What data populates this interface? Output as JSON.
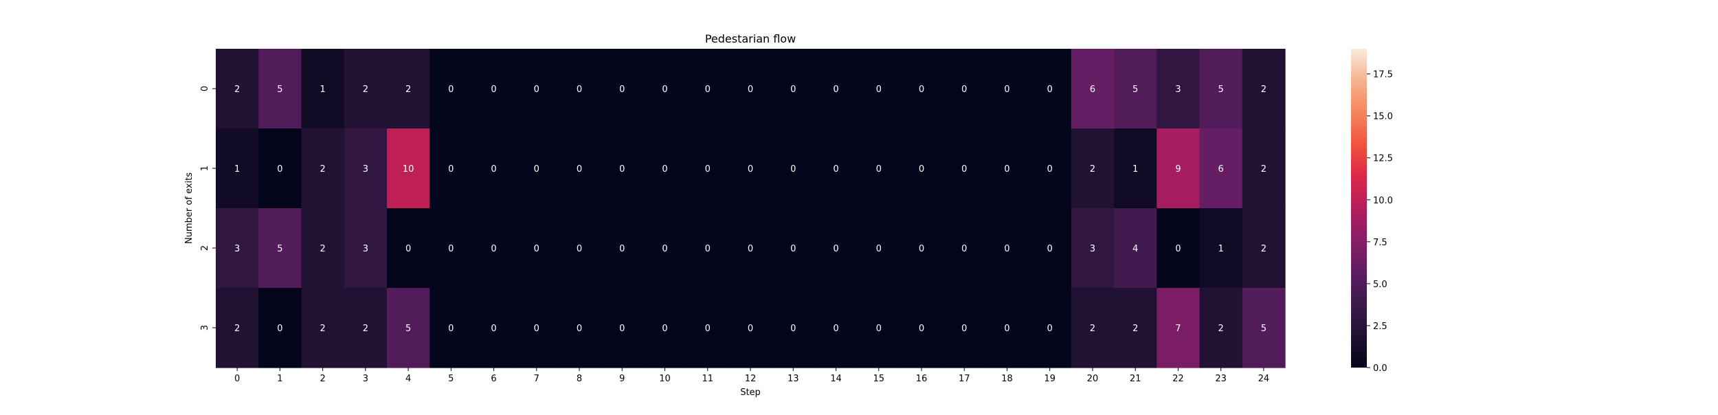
{
  "chart_data": {
    "type": "heatmap",
    "title": "Pedestarian flow",
    "xlabel": "Step",
    "ylabel": "Number of exits",
    "x_categories": [
      "0",
      "1",
      "2",
      "3",
      "4",
      "5",
      "6",
      "7",
      "8",
      "9",
      "10",
      "11",
      "12",
      "13",
      "14",
      "15",
      "16",
      "17",
      "18",
      "19",
      "20",
      "21",
      "22",
      "23",
      "24"
    ],
    "y_categories": [
      "0",
      "1",
      "2",
      "3"
    ],
    "values": [
      [
        2,
        5,
        1,
        2,
        2,
        0,
        0,
        0,
        0,
        0,
        0,
        0,
        0,
        0,
        0,
        0,
        0,
        0,
        0,
        0,
        6,
        5,
        3,
        5,
        2
      ],
      [
        1,
        0,
        2,
        3,
        10,
        0,
        0,
        0,
        0,
        0,
        0,
        0,
        0,
        0,
        0,
        0,
        0,
        0,
        0,
        0,
        2,
        1,
        9,
        6,
        2
      ],
      [
        3,
        5,
        2,
        3,
        0,
        0,
        0,
        0,
        0,
        0,
        0,
        0,
        0,
        0,
        0,
        0,
        0,
        0,
        0,
        0,
        3,
        4,
        0,
        1,
        2
      ],
      [
        2,
        0,
        2,
        2,
        5,
        0,
        0,
        0,
        0,
        0,
        0,
        0,
        0,
        0,
        0,
        0,
        0,
        0,
        0,
        0,
        2,
        2,
        7,
        2,
        5
      ]
    ],
    "colorbar": {
      "range": [
        0,
        19
      ],
      "ticks": [
        "0.0",
        "2.5",
        "5.0",
        "7.5",
        "10.0",
        "12.5",
        "15.0",
        "17.5"
      ],
      "colormap": "rocket"
    }
  }
}
